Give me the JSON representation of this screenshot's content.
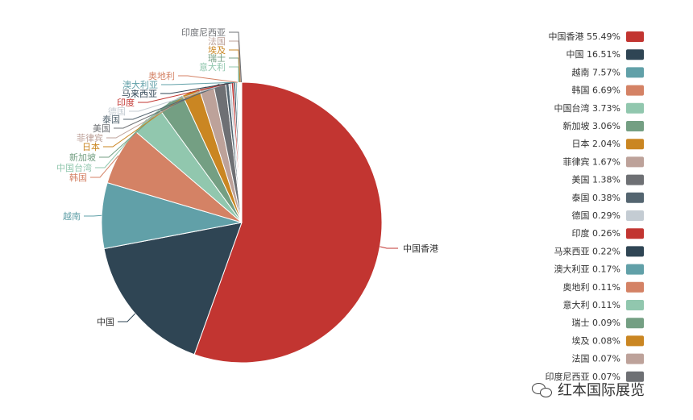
{
  "chart_data": {
    "type": "pie",
    "categories": [
      "中国香港",
      "中国",
      "越南",
      "韩国",
      "中国台湾",
      "新加坡",
      "日本",
      "菲律宾",
      "美国",
      "泰国",
      "德国",
      "印度",
      "马来西亚",
      "澳大利亚",
      "奥地利",
      "意大利",
      "瑞士",
      "埃及",
      "法国",
      "印度尼西亚"
    ],
    "values": [
      55.49,
      16.51,
      7.57,
      6.69,
      3.73,
      3.06,
      2.04,
      1.67,
      1.38,
      0.38,
      0.29,
      0.26,
      0.22,
      0.17,
      0.11,
      0.11,
      0.09,
      0.08,
      0.07,
      0.07
    ],
    "value_labels": [
      "55.49%",
      "16.51%",
      "7.57%",
      "6.69%",
      "3.73%",
      "3.06%",
      "2.04%",
      "1.67%",
      "1.38%",
      "0.38%",
      "0.29%",
      "0.26%",
      "0.22%",
      "0.17%",
      "0.11%",
      "0.11%",
      "0.09%",
      "0.08%",
      "0.07%",
      "0.07%"
    ],
    "colors": [
      "#c23531",
      "#2f4554",
      "#61a0a8",
      "#d48265",
      "#91c7ae",
      "#749f83",
      "#ca8622",
      "#bda29a",
      "#6e7074",
      "#546570",
      "#c4ccd3",
      "#c23531",
      "#2f4554",
      "#61a0a8",
      "#d48265",
      "#91c7ae",
      "#749f83",
      "#ca8622",
      "#bda29a",
      "#6e7074"
    ],
    "legend_position": "right",
    "start": "top, clockwise"
  },
  "watermark": {
    "icon": "wechat-icon",
    "text": "红本国际展览"
  }
}
